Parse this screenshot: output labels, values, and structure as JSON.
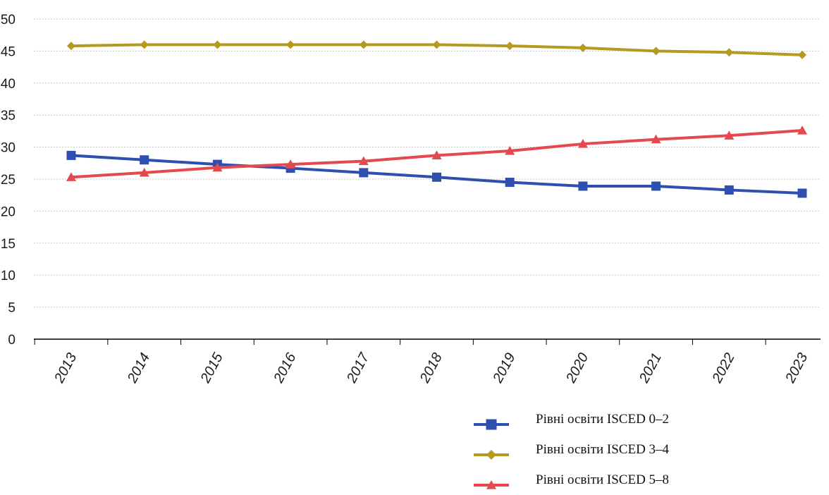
{
  "chart_data": {
    "type": "line",
    "categories": [
      "2013",
      "2014",
      "2015",
      "2016",
      "2017",
      "2018",
      "2019",
      "2020",
      "2021",
      "2022",
      "2023"
    ],
    "ylim": [
      0,
      50
    ],
    "y_ticks": [
      "0",
      "5",
      "10",
      "15",
      "20",
      "25",
      "30",
      "35",
      "40",
      "45",
      "50"
    ],
    "grid": true,
    "legend_position": "bottom-right",
    "series": [
      {
        "name": "Рівні освіти ISCED  0–2",
        "color": "#2f4fb0",
        "marker": "square",
        "values": [
          28.7,
          28.0,
          27.3,
          26.7,
          26.0,
          25.3,
          24.5,
          23.9,
          23.9,
          23.3,
          22.8
        ]
      },
      {
        "name": "Рівні освіти ISCED 3–4",
        "color": "#b59a1f",
        "marker": "diamond",
        "values": [
          45.8,
          46.0,
          46.0,
          46.0,
          46.0,
          46.0,
          45.8,
          45.5,
          45.0,
          44.8,
          44.4
        ]
      },
      {
        "name": "Рівні освіти ISCED 5–8",
        "color": "#e5484d",
        "marker": "triangle",
        "values": [
          25.3,
          26.0,
          26.8,
          27.3,
          27.8,
          28.7,
          29.4,
          30.5,
          31.2,
          31.8,
          32.6
        ]
      }
    ]
  }
}
